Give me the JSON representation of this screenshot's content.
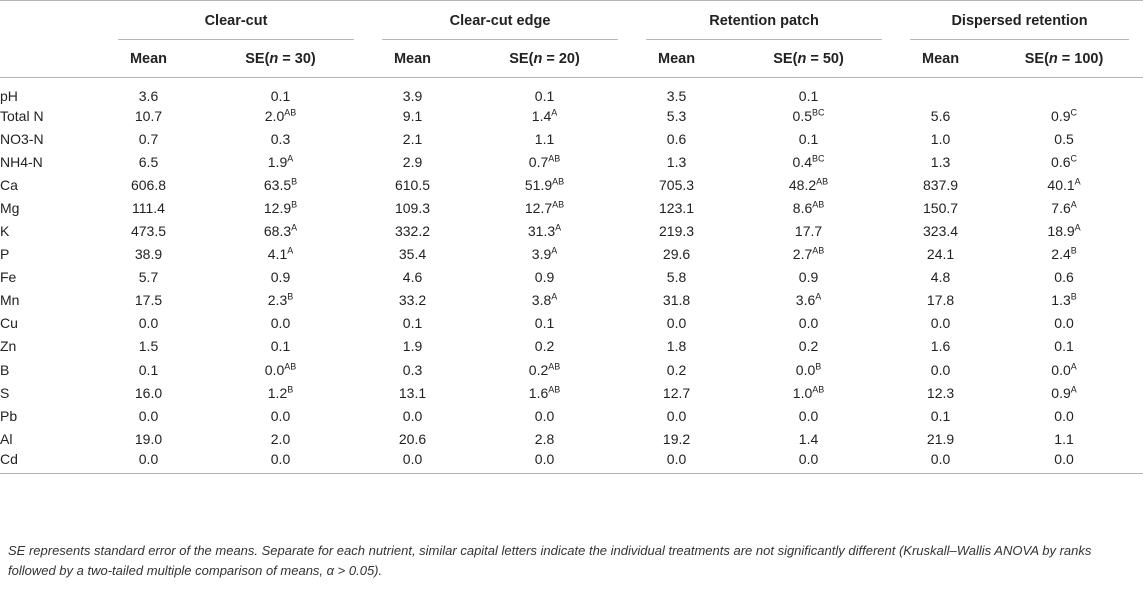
{
  "groups": [
    "Clear-cut",
    "Clear-cut edge",
    "Retention patch",
    "Dispersed retention"
  ],
  "subheaders": [
    {
      "mean": "Mean",
      "se_prefix": "SE(",
      "n_var": "n",
      "se_suffix": " = 30)"
    },
    {
      "mean": "Mean",
      "se_prefix": "SE(",
      "n_var": "n",
      "se_suffix": " = 20)"
    },
    {
      "mean": "Mean",
      "se_prefix": "SE(",
      "n_var": "n",
      "se_suffix": " = 50)"
    },
    {
      "mean": "Mean",
      "se_prefix": "SE(",
      "n_var": "n",
      "se_suffix": " = 100)"
    }
  ],
  "rows": [
    {
      "label": "pH",
      "cells": [
        [
          "3.6",
          ""
        ],
        [
          "0.1",
          ""
        ],
        [
          "3.9",
          ""
        ],
        [
          "0.1",
          ""
        ],
        [
          "3.5",
          ""
        ],
        [
          "0.1",
          ""
        ],
        [
          "",
          ""
        ],
        [
          "",
          ""
        ]
      ]
    },
    {
      "label": "Total N",
      "cells": [
        [
          "10.7",
          ""
        ],
        [
          "2.0",
          "AB"
        ],
        [
          "9.1",
          ""
        ],
        [
          "1.4",
          "A"
        ],
        [
          "5.3",
          ""
        ],
        [
          "0.5",
          "BC"
        ],
        [
          "5.6",
          ""
        ],
        [
          "0.9",
          "C"
        ]
      ]
    },
    {
      "label": "NO3-N",
      "cells": [
        [
          "0.7",
          ""
        ],
        [
          "0.3",
          ""
        ],
        [
          "2.1",
          ""
        ],
        [
          "1.1",
          ""
        ],
        [
          "0.6",
          ""
        ],
        [
          "0.1",
          ""
        ],
        [
          "1.0",
          ""
        ],
        [
          "0.5",
          ""
        ]
      ]
    },
    {
      "label": "NH4-N",
      "cells": [
        [
          "6.5",
          ""
        ],
        [
          "1.9",
          "A"
        ],
        [
          "2.9",
          ""
        ],
        [
          "0.7",
          "AB"
        ],
        [
          "1.3",
          ""
        ],
        [
          "0.4",
          "BC"
        ],
        [
          "1.3",
          ""
        ],
        [
          "0.6",
          "C"
        ]
      ]
    },
    {
      "label": "Ca",
      "cells": [
        [
          "606.8",
          ""
        ],
        [
          "63.5",
          "B"
        ],
        [
          "610.5",
          ""
        ],
        [
          "51.9",
          "AB"
        ],
        [
          "705.3",
          ""
        ],
        [
          "48.2",
          "AB"
        ],
        [
          "837.9",
          ""
        ],
        [
          "40.1",
          "A"
        ]
      ]
    },
    {
      "label": "Mg",
      "cells": [
        [
          "111.4",
          ""
        ],
        [
          "12.9",
          "B"
        ],
        [
          "109.3",
          ""
        ],
        [
          "12.7",
          "AB"
        ],
        [
          "123.1",
          ""
        ],
        [
          "8.6",
          "AB"
        ],
        [
          "150.7",
          ""
        ],
        [
          "7.6",
          "A"
        ]
      ]
    },
    {
      "label": "K",
      "cells": [
        [
          "473.5",
          ""
        ],
        [
          "68.3",
          "A"
        ],
        [
          "332.2",
          ""
        ],
        [
          "31.3",
          "A"
        ],
        [
          "219.3",
          ""
        ],
        [
          "17.7",
          ""
        ],
        [
          "323.4",
          ""
        ],
        [
          "18.9",
          "A"
        ]
      ]
    },
    {
      "label": "P",
      "cells": [
        [
          "38.9",
          ""
        ],
        [
          "4.1",
          "A"
        ],
        [
          "35.4",
          ""
        ],
        [
          "3.9",
          "A"
        ],
        [
          "29.6",
          ""
        ],
        [
          "2.7",
          "AB"
        ],
        [
          "24.1",
          ""
        ],
        [
          "2.4",
          "B"
        ]
      ]
    },
    {
      "label": "Fe",
      "cells": [
        [
          "5.7",
          ""
        ],
        [
          "0.9",
          ""
        ],
        [
          "4.6",
          ""
        ],
        [
          "0.9",
          ""
        ],
        [
          "5.8",
          ""
        ],
        [
          "0.9",
          ""
        ],
        [
          "4.8",
          ""
        ],
        [
          "0.6",
          ""
        ]
      ]
    },
    {
      "label": "Mn",
      "cells": [
        [
          "17.5",
          ""
        ],
        [
          "2.3",
          "B"
        ],
        [
          "33.2",
          ""
        ],
        [
          "3.8",
          "A"
        ],
        [
          "31.8",
          ""
        ],
        [
          "3.6",
          "A"
        ],
        [
          "17.8",
          ""
        ],
        [
          "1.3",
          "B"
        ]
      ]
    },
    {
      "label": "Cu",
      "cells": [
        [
          "0.0",
          ""
        ],
        [
          "0.0",
          ""
        ],
        [
          "0.1",
          ""
        ],
        [
          "0.1",
          ""
        ],
        [
          "0.0",
          ""
        ],
        [
          "0.0",
          ""
        ],
        [
          "0.0",
          ""
        ],
        [
          "0.0",
          ""
        ]
      ]
    },
    {
      "label": "Zn",
      "cells": [
        [
          "1.5",
          ""
        ],
        [
          "0.1",
          ""
        ],
        [
          "1.9",
          ""
        ],
        [
          "0.2",
          ""
        ],
        [
          "1.8",
          ""
        ],
        [
          "0.2",
          ""
        ],
        [
          "1.6",
          ""
        ],
        [
          "0.1",
          ""
        ]
      ]
    },
    {
      "label": "B",
      "cells": [
        [
          "0.1",
          ""
        ],
        [
          "0.0",
          "AB"
        ],
        [
          "0.3",
          ""
        ],
        [
          "0.2",
          "AB"
        ],
        [
          "0.2",
          ""
        ],
        [
          "0.0",
          "B"
        ],
        [
          "0.0",
          ""
        ],
        [
          "0.0",
          "A"
        ]
      ]
    },
    {
      "label": "S",
      "cells": [
        [
          "16.0",
          ""
        ],
        [
          "1.2",
          "B"
        ],
        [
          "13.1",
          ""
        ],
        [
          "1.6",
          "AB"
        ],
        [
          "12.7",
          ""
        ],
        [
          "1.0",
          "AB"
        ],
        [
          "12.3",
          ""
        ],
        [
          "0.9",
          "A"
        ]
      ]
    },
    {
      "label": "Pb",
      "cells": [
        [
          "0.0",
          ""
        ],
        [
          "0.0",
          ""
        ],
        [
          "0.0",
          ""
        ],
        [
          "0.0",
          ""
        ],
        [
          "0.0",
          ""
        ],
        [
          "0.0",
          ""
        ],
        [
          "0.1",
          ""
        ],
        [
          "0.0",
          ""
        ]
      ]
    },
    {
      "label": "Al",
      "cells": [
        [
          "19.0",
          ""
        ],
        [
          "2.0",
          ""
        ],
        [
          "20.6",
          ""
        ],
        [
          "2.8",
          ""
        ],
        [
          "19.2",
          ""
        ],
        [
          "1.4",
          ""
        ],
        [
          "21.9",
          ""
        ],
        [
          "1.1",
          ""
        ]
      ]
    },
    {
      "label": "Cd",
      "cells": [
        [
          "0.0",
          ""
        ],
        [
          "0.0",
          ""
        ],
        [
          "0.0",
          ""
        ],
        [
          "0.0",
          ""
        ],
        [
          "0.0",
          ""
        ],
        [
          "0.0",
          ""
        ],
        [
          "0.0",
          ""
        ],
        [
          "0.0",
          ""
        ]
      ]
    }
  ],
  "footnote": "SE represents standard error of the means. Separate for each nutrient, similar capital letters indicate the individual treatments are not significantly different (Kruskall–Wallis ANOVA by ranks followed by a two-tailed multiple comparison of means, α > 0.05)."
}
